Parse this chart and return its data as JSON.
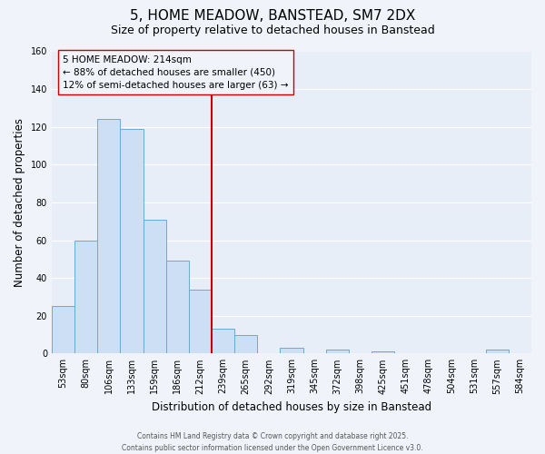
{
  "title": "5, HOME MEADOW, BANSTEAD, SM7 2DX",
  "subtitle": "Size of property relative to detached houses in Banstead",
  "xlabel": "Distribution of detached houses by size in Banstead",
  "ylabel": "Number of detached properties",
  "bin_labels": [
    "53sqm",
    "80sqm",
    "106sqm",
    "133sqm",
    "159sqm",
    "186sqm",
    "212sqm",
    "239sqm",
    "265sqm",
    "292sqm",
    "319sqm",
    "345sqm",
    "372sqm",
    "398sqm",
    "425sqm",
    "451sqm",
    "478sqm",
    "504sqm",
    "531sqm",
    "557sqm",
    "584sqm"
  ],
  "bar_heights": [
    25,
    60,
    124,
    119,
    71,
    49,
    34,
    13,
    10,
    0,
    3,
    0,
    2,
    0,
    1,
    0,
    0,
    0,
    0,
    2,
    0
  ],
  "bar_color": "#ccdff5",
  "bar_edge_color": "#6aaad4",
  "vline_x": 6.5,
  "vline_color": "#cc0000",
  "ylim": [
    0,
    160
  ],
  "yticks": [
    0,
    20,
    40,
    60,
    80,
    100,
    120,
    140,
    160
  ],
  "annotation_title": "5 HOME MEADOW: 214sqm",
  "annotation_line1": "← 88% of detached houses are smaller (450)",
  "annotation_line2": "12% of semi-detached houses are larger (63) →",
  "footer_line1": "Contains HM Land Registry data © Crown copyright and database right 2025.",
  "footer_line2": "Contains public sector information licensed under the Open Government Licence v3.0.",
  "background_color": "#f0f4fa",
  "plot_bg_color": "#e8eef8",
  "grid_color": "#ffffff",
  "title_fontsize": 11,
  "subtitle_fontsize": 9,
  "label_fontsize": 8.5,
  "tick_fontsize": 7,
  "ann_fontsize": 7.5,
  "footer_fontsize": 5.5
}
